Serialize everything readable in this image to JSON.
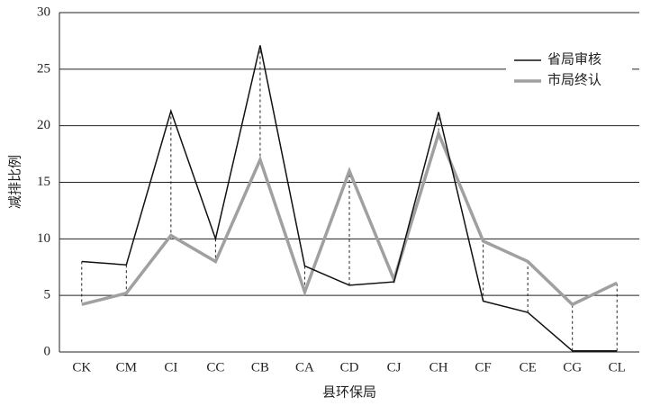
{
  "chart_data": {
    "type": "line",
    "categories": [
      "CK",
      "CM",
      "CI",
      "CC",
      "CB",
      "CA",
      "CD",
      "CJ",
      "CH",
      "CF",
      "CE",
      "CG",
      "CL"
    ],
    "x_label": "县环保局",
    "y_label": "减排比例",
    "series": [
      {
        "name": "省局审核",
        "color": "#111111",
        "width": 1.5,
        "values": [
          8,
          7.7,
          21.3,
          10,
          27.1,
          7.6,
          5.9,
          6.2,
          21.2,
          4.5,
          3.5,
          0.1,
          0.1
        ]
      },
      {
        "name": "市局终认",
        "color": "#a0a0a0",
        "width": 3.5,
        "values": [
          4.2,
          5.2,
          10.3,
          8,
          17,
          5.3,
          16,
          6.4,
          19.3,
          9.8,
          8,
          4.2,
          6.1
        ]
      }
    ],
    "ylim": [
      0,
      30
    ],
    "yticks": [
      0,
      5,
      10,
      15,
      20,
      25,
      30
    ],
    "grid": true,
    "legend": "upper right"
  }
}
